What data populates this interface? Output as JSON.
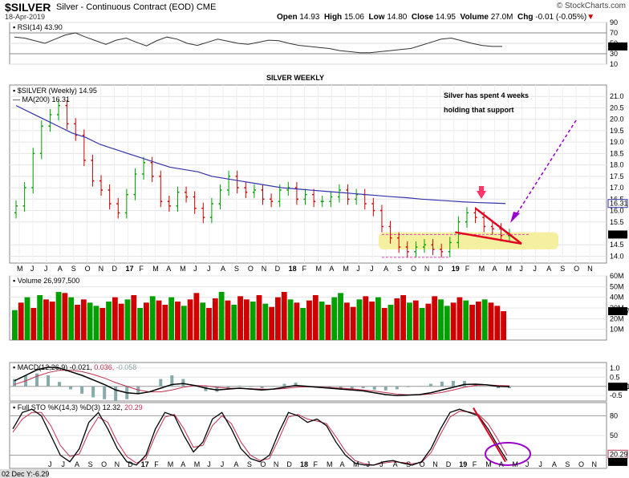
{
  "header": {
    "symbol": "$SILVER",
    "description": "Silver - Continuous Contract (EOD)",
    "exchange": "CME",
    "date": "18-Apr-2019",
    "open_label": "Open",
    "open": "14.93",
    "high_label": "High",
    "high": "15.06",
    "low_label": "Low",
    "low": "14.80",
    "close_label": "Close",
    "close": "14.95",
    "volume_label": "Volume",
    "volume": "27.0M",
    "chg_label": "Chg",
    "chg": "-0.01 (-0.05%)",
    "logo": "© StockCharts.com"
  },
  "chart_data": [
    {
      "type": "line",
      "panel": "rsi",
      "legend": "RSI(14) 43.90",
      "ylim": [
        10,
        90
      ],
      "ticks": [
        90,
        70,
        50,
        30,
        10
      ],
      "last_value_label": "43.90",
      "values": [
        62,
        60,
        55,
        50,
        58,
        66,
        70,
        62,
        55,
        48,
        56,
        60,
        52,
        45,
        55,
        62,
        58,
        50,
        46,
        52,
        58,
        54,
        50,
        48,
        52,
        56,
        55,
        50,
        46,
        44,
        42,
        40,
        36,
        34,
        32,
        32,
        34,
        36,
        38,
        40,
        46,
        52,
        58,
        60,
        55,
        50,
        46,
        44,
        44
      ]
    },
    {
      "type": "candlestick",
      "panel": "price",
      "legend_symbol": "$SILVER (Weekly) 14.95",
      "legend_ma": "MA(200) 16.31",
      "title": "SILVER WEEKLY",
      "annotation": "Silver has spent 4 weeks holding that support",
      "ylim": [
        13.7,
        21.5
      ],
      "ticks": [
        21.0,
        20.5,
        20.0,
        19.5,
        19.0,
        18.5,
        18.0,
        17.5,
        17.0,
        16.5,
        16.0,
        15.5,
        14.5,
        14.0
      ],
      "ma_label": "16.31",
      "close_label": "14.95",
      "x_labels": [
        "M",
        "J",
        "J",
        "A",
        "S",
        "O",
        "N",
        "D",
        "17",
        "F",
        "M",
        "A",
        "M",
        "J",
        "J",
        "A",
        "S",
        "O",
        "N",
        "D",
        "18",
        "F",
        "M",
        "A",
        "M",
        "J",
        "J",
        "A",
        "S",
        "O",
        "N",
        "D",
        "19",
        "F",
        "M",
        "A",
        "M",
        "J",
        "J",
        "A",
        "S",
        "O",
        "N"
      ],
      "closes": [
        16.2,
        17.0,
        18.5,
        19.7,
        20.2,
        20.6,
        19.8,
        19.3,
        18.2,
        17.3,
        16.9,
        16.3,
        15.9,
        16.7,
        17.6,
        18.1,
        17.5,
        16.4,
        16.2,
        16.8,
        16.6,
        16.1,
        15.7,
        16.3,
        16.9,
        17.5,
        17.0,
        16.8,
        16.9,
        16.5,
        16.4,
        16.9,
        17.0,
        16.5,
        16.7,
        16.4,
        16.4,
        16.6,
        16.9,
        16.5,
        16.7,
        16.3,
        16.0,
        15.3,
        14.8,
        14.4,
        14.2,
        14.4,
        14.5,
        14.3,
        14.2,
        14.6,
        15.5,
        15.9,
        15.7,
        15.3,
        15.2,
        14.9,
        14.95
      ],
      "ma200": [
        20.6,
        20.3,
        20.0,
        19.7,
        19.4,
        19.2,
        18.9,
        18.7,
        18.5,
        18.3,
        18.1,
        17.9,
        17.8,
        17.7,
        17.5,
        17.4,
        17.3,
        17.2,
        17.1,
        17.0,
        16.95,
        16.9,
        16.85,
        16.8,
        16.75,
        16.7,
        16.65,
        16.6,
        16.56,
        16.5,
        16.46,
        16.42,
        16.38,
        16.35,
        16.33,
        16.31
      ]
    },
    {
      "type": "bar",
      "panel": "volume",
      "legend": "Volume 26,997,500",
      "ylim": [
        0,
        60
      ],
      "ticks": [
        60,
        50,
        40,
        30,
        20,
        10
      ],
      "unit_suffix": "M",
      "last_value_label": "26997",
      "values": [
        28,
        35,
        40,
        30,
        42,
        38,
        36,
        45,
        44,
        40,
        33,
        38,
        35,
        32,
        30,
        36,
        40,
        34,
        38,
        42,
        30,
        35,
        41,
        37,
        33,
        40,
        36,
        32,
        38,
        44,
        35,
        30,
        39,
        45,
        37,
        33,
        41,
        38,
        36,
        42,
        34,
        31,
        40,
        45,
        38,
        35,
        30,
        37,
        42,
        36,
        33,
        40,
        44,
        35,
        31,
        38,
        41,
        36,
        40,
        30,
        33,
        39,
        42,
        35,
        37,
        30,
        34,
        41,
        38,
        32,
        35,
        40,
        37,
        33,
        36,
        38,
        35,
        32,
        27
      ],
      "up_flags": [
        1,
        0,
        1,
        0,
        1,
        0,
        0,
        1,
        0,
        1,
        0,
        0,
        1,
        1,
        0,
        1,
        0,
        0,
        1,
        0,
        1,
        0,
        1,
        0,
        0,
        1,
        0,
        1,
        0,
        0,
        1,
        0,
        0,
        1,
        0,
        1,
        0,
        0,
        1,
        0,
        1,
        0,
        0,
        0,
        1,
        0,
        1,
        0,
        0,
        1,
        0,
        1,
        1,
        0,
        0,
        1,
        0,
        0,
        1,
        0,
        1,
        0,
        0,
        1,
        0,
        1,
        0,
        0,
        1,
        1,
        0,
        0,
        1,
        0,
        0,
        1,
        0,
        0,
        0
      ]
    },
    {
      "type": "line",
      "panel": "macd",
      "legend_prefix": "MACD(12,26,9)",
      "legend_values": [
        "-0.021",
        "0.036",
        "-0.058"
      ],
      "ylim": [
        -0.8,
        1.3
      ],
      "ticks": [
        1.0,
        0.5,
        0.0,
        -0.5
      ],
      "last_value_label": "-0.021",
      "macd": [
        0.3,
        0.6,
        0.9,
        1.05,
        1.0,
        0.8,
        0.6,
        0.35,
        0.1,
        -0.2,
        -0.35,
        -0.4,
        -0.3,
        -0.1,
        0.1,
        0.15,
        0.05,
        -0.1,
        -0.2,
        -0.15,
        -0.1,
        -0.15,
        -0.2,
        -0.15,
        -0.05,
        0.05,
        0.0,
        -0.05,
        -0.1,
        -0.15,
        -0.2,
        -0.25,
        -0.35,
        -0.45,
        -0.5,
        -0.48,
        -0.45,
        -0.35,
        -0.2,
        -0.05,
        0.1,
        0.12,
        0.08,
        0.0,
        -0.02
      ],
      "signal": [
        0.1,
        0.3,
        0.55,
        0.75,
        0.88,
        0.88,
        0.8,
        0.65,
        0.45,
        0.2,
        0.0,
        -0.2,
        -0.3,
        -0.3,
        -0.2,
        -0.05,
        0.05,
        0.03,
        -0.05,
        -0.1,
        -0.12,
        -0.13,
        -0.15,
        -0.16,
        -0.12,
        -0.05,
        -0.02,
        -0.03,
        -0.06,
        -0.1,
        -0.14,
        -0.2,
        -0.26,
        -0.34,
        -0.42,
        -0.46,
        -0.46,
        -0.42,
        -0.33,
        -0.2,
        -0.05,
        0.06,
        0.08,
        0.05,
        0.03
      ]
    },
    {
      "type": "line",
      "panel": "stochastic",
      "legend_prefix": "Full STO %K(14,3) %D(3)",
      "legend_values": [
        "12.32",
        "20.29"
      ],
      "ylim": [
        0,
        100
      ],
      "ticks": [
        80,
        50,
        20
      ],
      "last_value_labels": [
        "20.29",
        "12.32"
      ],
      "k": [
        60,
        85,
        90,
        80,
        50,
        20,
        10,
        30,
        70,
        85,
        60,
        30,
        10,
        5,
        20,
        60,
        85,
        80,
        50,
        25,
        40,
        75,
        85,
        60,
        30,
        15,
        10,
        20,
        55,
        85,
        80,
        70,
        75,
        65,
        40,
        20,
        8,
        5,
        5,
        10,
        12,
        8,
        5,
        10,
        30,
        60,
        85,
        90,
        85,
        80,
        60,
        35,
        12
      ],
      "d": [
        55,
        75,
        85,
        85,
        65,
        35,
        18,
        22,
        55,
        78,
        70,
        40,
        18,
        8,
        15,
        50,
        78,
        82,
        60,
        32,
        35,
        65,
        80,
        68,
        40,
        20,
        12,
        15,
        45,
        78,
        82,
        75,
        72,
        68,
        48,
        26,
        12,
        7,
        5,
        8,
        10,
        9,
        7,
        9,
        24,
        52,
        78,
        87,
        86,
        82,
        68,
        45,
        20
      ],
      "x_labels": [
        "J",
        "J",
        "A",
        "S",
        "O",
        "N",
        "D",
        "17",
        "F",
        "M",
        "A",
        "M",
        "J",
        "J",
        "A",
        "S",
        "O",
        "N",
        "D",
        "18",
        "F",
        "M",
        "A",
        "M",
        "J",
        "J",
        "A",
        "S",
        "O",
        "N",
        "D",
        "19",
        "F",
        "M",
        "A",
        "M",
        "J",
        "J",
        "A",
        "S",
        "O",
        "N"
      ],
      "footer_note": "02 Dec Y:-6.29"
    }
  ],
  "colors": {
    "up_candle": "#00a000",
    "down_candle": "#d00000",
    "ma_line": "#3333aa",
    "annotation": "#cc00cc",
    "title_color": "#cc33cc",
    "support_box": "#f5f0a0",
    "trend_line": "#e00020",
    "arrow_dashed": "#9900cc",
    "price_marker": "#ff3366"
  }
}
